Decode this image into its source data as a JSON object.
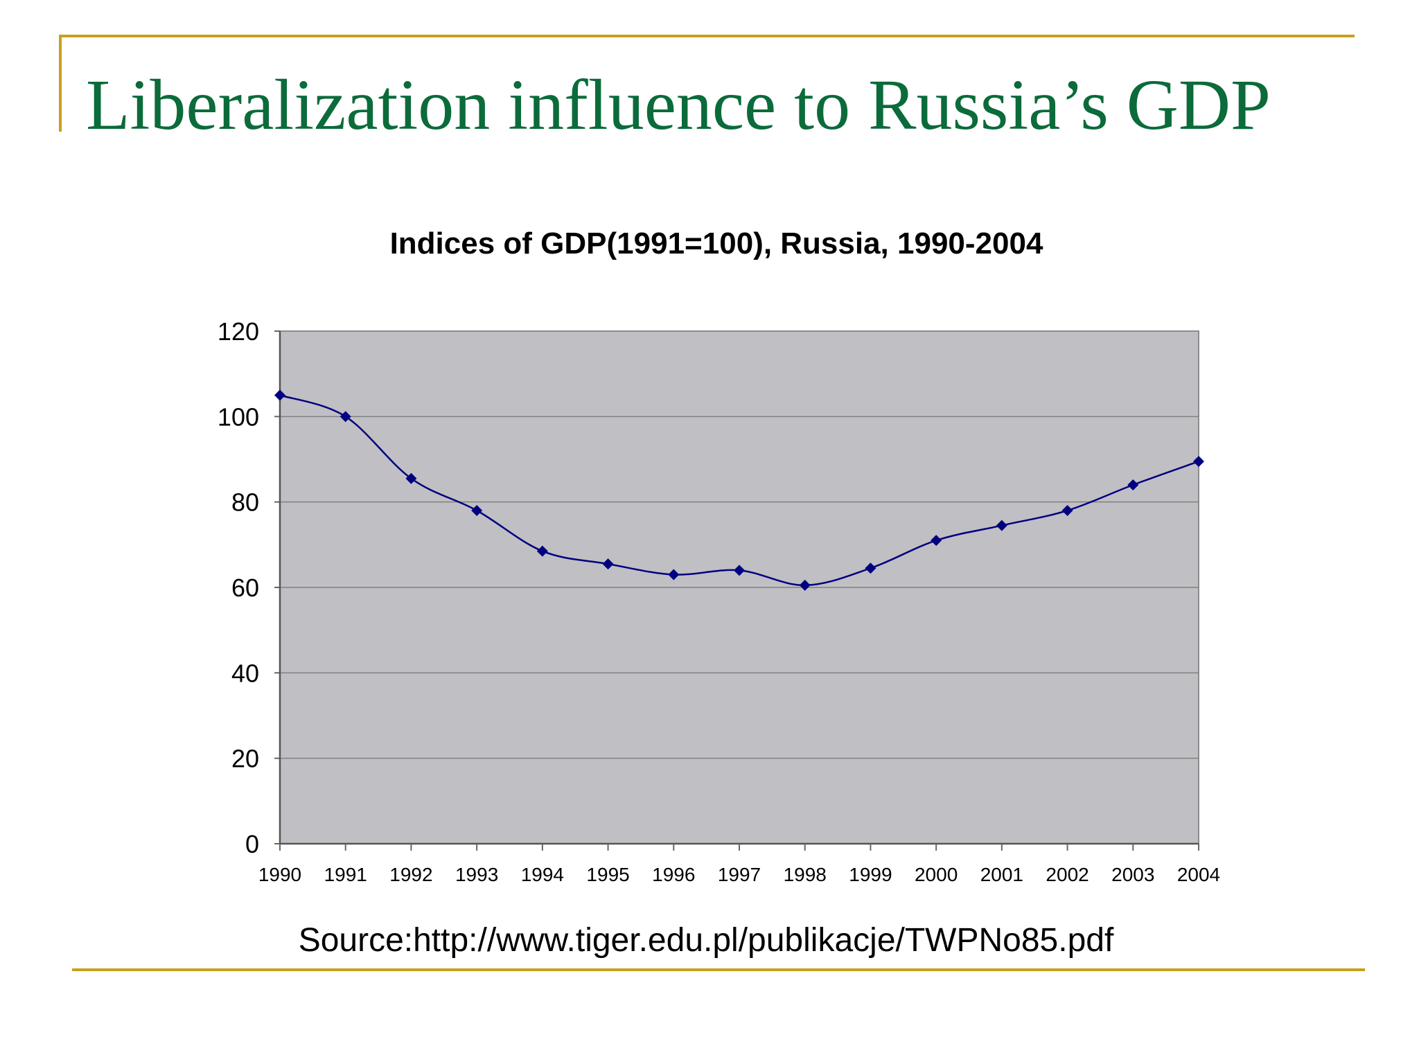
{
  "slide": {
    "title": "Liberalization influence to Russia’s GDP",
    "source": "Source:http://www.tiger.edu.pl/publikacje/TWPNo85.pdf"
  },
  "colors": {
    "title": "#0b6b3a",
    "rule": "#c8a020",
    "plot_background": "#c0bfc3",
    "series_line": "#000080",
    "gridline": "#808080"
  },
  "chart_data": {
    "type": "line",
    "title": "Indices of GDP(1991=100), Russia, 1990-2004",
    "xlabel": "",
    "ylabel": "",
    "categories": [
      "1990",
      "1991",
      "1992",
      "1993",
      "1994",
      "1995",
      "1996",
      "1997",
      "1998",
      "1999",
      "2000",
      "2001",
      "2002",
      "2003",
      "2004"
    ],
    "series": [
      {
        "values": [
          105,
          100,
          85.5,
          78,
          68.5,
          65.5,
          63,
          64,
          60.5,
          64.5,
          71,
          74.5,
          78,
          84,
          89.5
        ]
      }
    ],
    "ylim": [
      0,
      120
    ],
    "yticks": [
      "0",
      "20",
      "40",
      "60",
      "80",
      "100",
      "120"
    ],
    "grid": true,
    "legend": "none",
    "marker": "diamond",
    "smooth": true
  }
}
